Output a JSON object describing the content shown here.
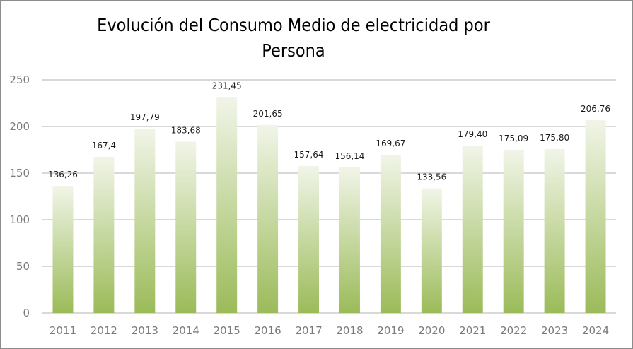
{
  "chart_data": {
    "type": "bar",
    "title": "Evolución del Consumo Medio de electricidad por Persona",
    "title_lines": [
      "Evolución  del Consumo  Medio de electricidad  por",
      "Persona"
    ],
    "xlabel": "",
    "ylabel": "",
    "categories": [
      "2011",
      "2012",
      "2013",
      "2014",
      "2015",
      "2016",
      "2017",
      "2018",
      "2019",
      "2020",
      "2021",
      "2022",
      "2023",
      "2024"
    ],
    "values": [
      136.26,
      167.4,
      197.79,
      183.68,
      231.45,
      201.65,
      157.64,
      156.14,
      169.67,
      133.56,
      179.4,
      175.09,
      175.8,
      206.76
    ],
    "data_labels": [
      "136,26",
      "167,4",
      "197,79",
      "183,68",
      "231,45",
      "201,65",
      "157,64",
      "156,14",
      "169,67",
      "133,56",
      "179,40",
      "175,09",
      "175,80",
      "206,76"
    ],
    "ylim": [
      0,
      250
    ],
    "yticks": [
      0,
      50,
      100,
      150,
      200,
      250
    ],
    "grid": true,
    "legend": "none",
    "colors": {
      "bar_top": "#f1f5e8",
      "bar_bottom": "#9bbb59",
      "grid": "#d9d9d9",
      "tick_text": "#7a7a7a",
      "label_text": "#1a1a1a",
      "border": "#8c8c8c"
    }
  }
}
